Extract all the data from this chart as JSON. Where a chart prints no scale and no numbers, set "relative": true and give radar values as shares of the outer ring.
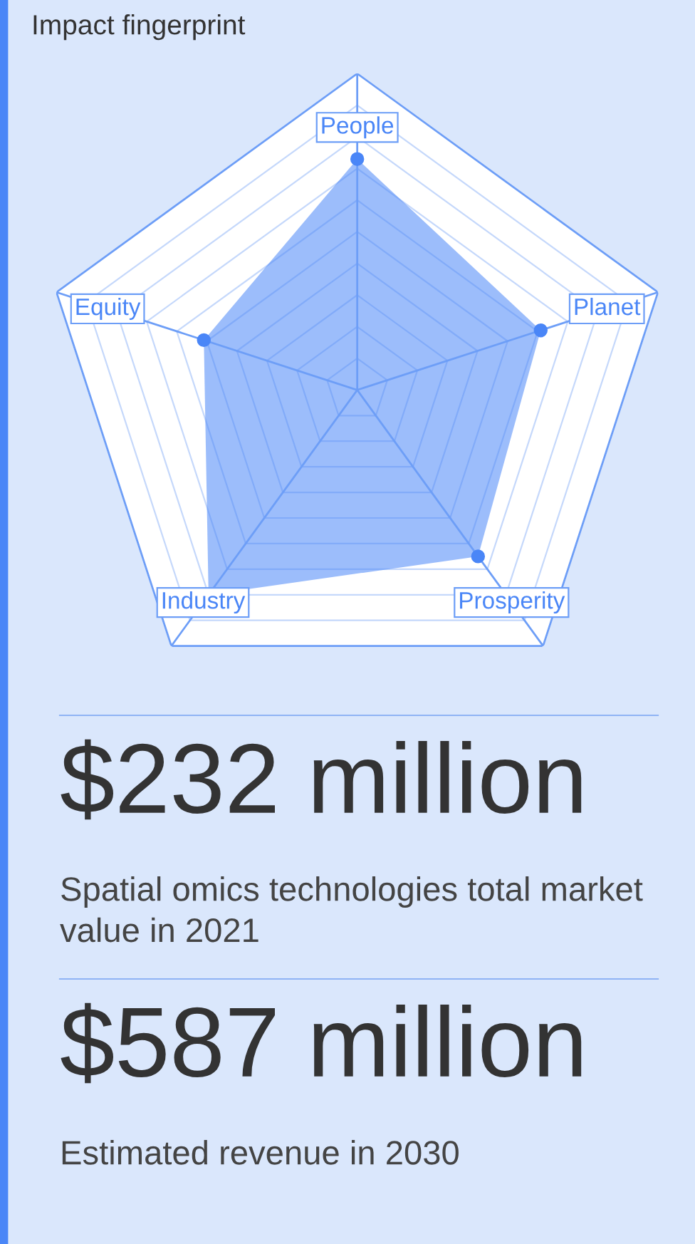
{
  "chart_data": {
    "type": "radar",
    "title": "Impact fingerprint",
    "relative": true,
    "marker": "circle",
    "categories": [
      "People",
      "Planet",
      "Prosperity",
      "Industry",
      "Equity"
    ],
    "series": [
      {
        "color": "#4a86f7",
        "values": [
          0.73,
          0.61,
          0.65,
          0.8,
          0.51
        ]
      }
    ],
    "annotations": [
      "$232 million",
      "Spatial omics technologies total market value in 2021",
      "$587 million",
      "Estimated revenue in 2030"
    ]
  }
}
